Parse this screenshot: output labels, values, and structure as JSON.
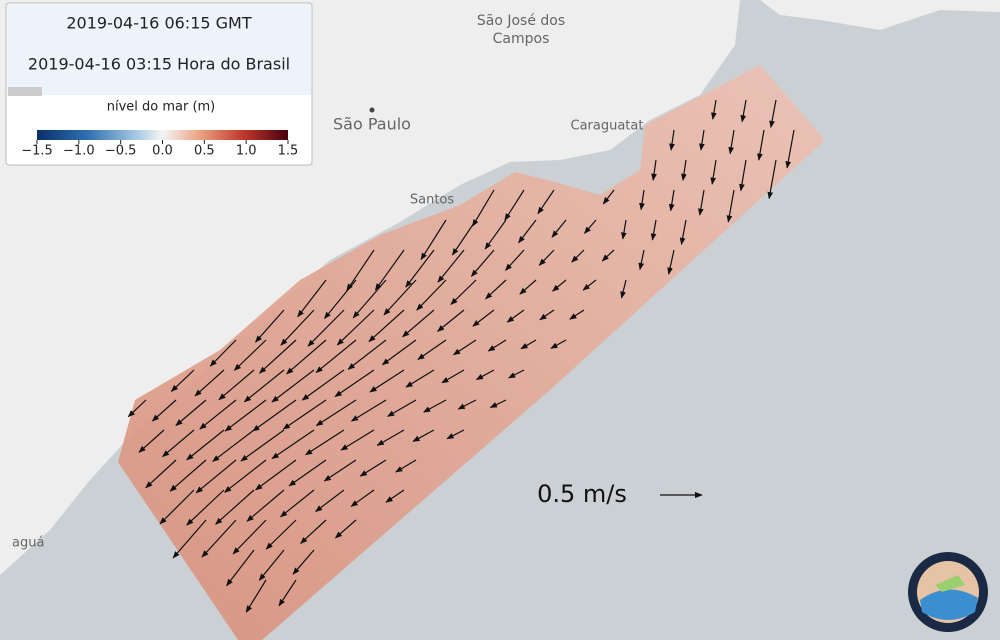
{
  "info": {
    "time_gmt": "2019-04-16 06:15 GMT",
    "time_local": "2019-04-16 03:15 Hora do Brasil"
  },
  "legend": {
    "title": "nível do mar (m)",
    "lim": [
      -1.5,
      1.5
    ],
    "ticks": [
      {
        "value": -1.5,
        "label": "−1.5"
      },
      {
        "value": -1,
        "label": "−1.0"
      },
      {
        "value": -0.5,
        "label": "−0.5"
      },
      {
        "value": 0,
        "label": "0.0"
      },
      0.5,
      {
        "value": 1,
        "label": "1.0"
      },
      1.5
    ]
  },
  "places": [
    {
      "lines": [
        "São José dos",
        "Campos"
      ]
    },
    {
      "lines": [
        "São Paulo"
      ]
    },
    {
      "lines": [
        "Caraguatat"
      ]
    },
    {
      "lines": [
        "Santos"
      ]
    },
    {
      "lines": [
        "aguá"
      ]
    }
  ],
  "scale": {
    "label": "0.5 m/s"
  }
}
